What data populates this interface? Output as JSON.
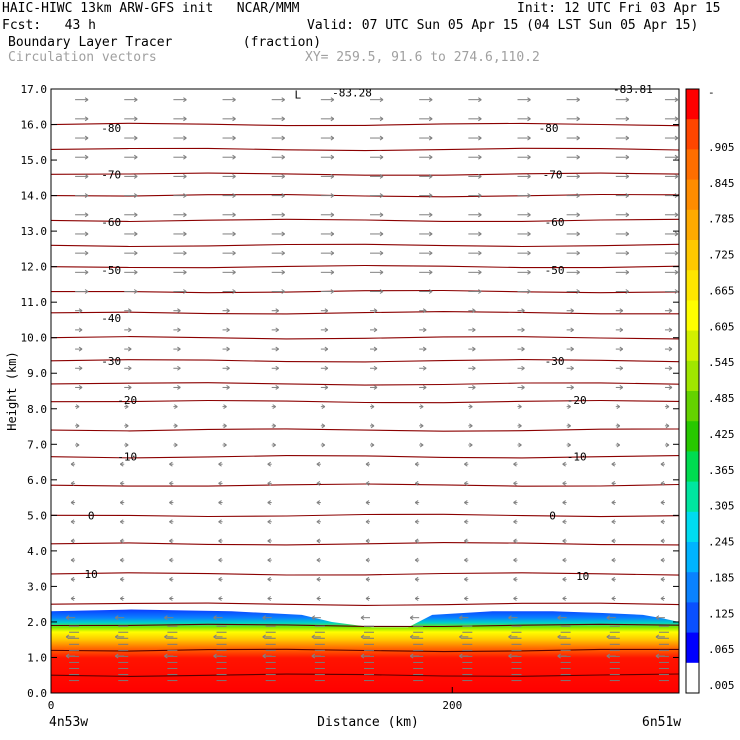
{
  "header": {
    "model_line": "HAIC-HIWC 13km ARW-GFS init   NCAR/MMM",
    "init_line": "Init: 12 UTC Fri 03 Apr 15",
    "fcst_line": "Fcst:   43 h",
    "valid_line": "Valid: 07 UTC Sun 05 Apr 15 (04 LST Sun 05 Apr 15)",
    "field_line": "Boundary Layer Tracer         (fraction)",
    "vector_line": "Circulation vectors",
    "xy_line": "XY= 259.5, 91.6 to 274.6,110.2"
  },
  "chart_data": {
    "type": "heatmap",
    "xlabel": "Distance (km)",
    "ylabel": "Height (km)",
    "xlim": [
      0,
      313
    ],
    "ylim": [
      0,
      17
    ],
    "x_ticks": [
      0,
      200
    ],
    "x_tick_labels": [
      "0",
      "200"
    ],
    "x_end_labels": [
      "4n53w",
      "6n51w"
    ],
    "y_ticks": [
      0,
      1,
      2,
      3,
      4,
      5,
      6,
      7,
      8,
      9,
      10,
      11,
      12,
      13,
      14,
      15,
      16,
      17
    ],
    "y_tick_labels": [
      "0.0",
      "1.0",
      "2.0",
      "3.0",
      "4.0",
      "5.0",
      "6.0",
      "7.0",
      "8.0",
      "9.0",
      "10.0",
      "11.0",
      "12.0",
      "13.0",
      "14.0",
      "15.0",
      "16.0",
      "17.0"
    ],
    "colorbar": {
      "colors": [
        "#ffffff",
        "#0000ff",
        "#0a50ff",
        "#0a82ff",
        "#00b4ff",
        "#00dcf0",
        "#00e6a0",
        "#00dc50",
        "#28c800",
        "#64d200",
        "#a0e600",
        "#d2f000",
        "#ffff00",
        "#ffe600",
        "#ffc800",
        "#ffaa00",
        "#ff8c00",
        "#ff6e00",
        "#ff4600",
        "#ff0000"
      ],
      "labels": [
        "-",
        ".905",
        ".845",
        ".785",
        ".725",
        ".665",
        ".605",
        ".545",
        ".485",
        ".425",
        ".365",
        ".305",
        ".245",
        ".185",
        ".125",
        ".065",
        ".005"
      ]
    },
    "tracer_layer": {
      "top_height_km": [
        2.3,
        2.35,
        2.3,
        2.2,
        2.0,
        1.85,
        1.85,
        2.2,
        2.3,
        2.3,
        2.25,
        2.2,
        2.1,
        2.0
      ],
      "top_x_km": [
        0,
        40,
        90,
        125,
        140,
        160,
        178,
        190,
        220,
        250,
        275,
        295,
        305,
        313
      ]
    },
    "temperature_contours": {
      "units": "C",
      "labels": [
        {
          "value": "-83.28",
          "x_km": 150,
          "height_km": 16.9
        },
        {
          "value": "-83.81",
          "x_km": 290,
          "height_km": 17.0
        },
        {
          "value": "-80",
          "x_km": 30,
          "height_km": 15.9
        },
        {
          "value": "-80",
          "x_km": 248,
          "height_km": 15.9
        },
        {
          "value": "-70",
          "x_km": 30,
          "height_km": 14.6
        },
        {
          "value": "-70",
          "x_km": 250,
          "height_km": 14.6
        },
        {
          "value": "-60",
          "x_km": 30,
          "height_km": 13.25
        },
        {
          "value": "-60",
          "x_km": 251,
          "height_km": 13.25
        },
        {
          "value": "-50",
          "x_km": 30,
          "height_km": 11.9
        },
        {
          "value": "-50",
          "x_km": 251,
          "height_km": 11.9
        },
        {
          "value": "-40",
          "x_km": 30,
          "height_km": 10.55
        },
        {
          "value": "-30",
          "x_km": 30,
          "height_km": 9.35
        },
        {
          "value": "-30",
          "x_km": 251,
          "height_km": 9.35
        },
        {
          "value": "-20",
          "x_km": 38,
          "height_km": 8.25
        },
        {
          "value": "-20",
          "x_km": 262,
          "height_km": 8.25
        },
        {
          "value": "-10",
          "x_km": 38,
          "height_km": 6.65
        },
        {
          "value": "-10",
          "x_km": 262,
          "height_km": 6.65
        },
        {
          "value": "0",
          "x_km": 20,
          "height_km": 5.0
        },
        {
          "value": "0",
          "x_km": 250,
          "height_km": 5.0
        },
        {
          "value": "10",
          "x_km": 20,
          "height_km": 3.35
        },
        {
          "value": "10",
          "x_km": 265,
          "height_km": 3.3
        }
      ],
      "low_marker": {
        "value": "L",
        "x_km": 123,
        "height_km": 16.85
      }
    }
  }
}
